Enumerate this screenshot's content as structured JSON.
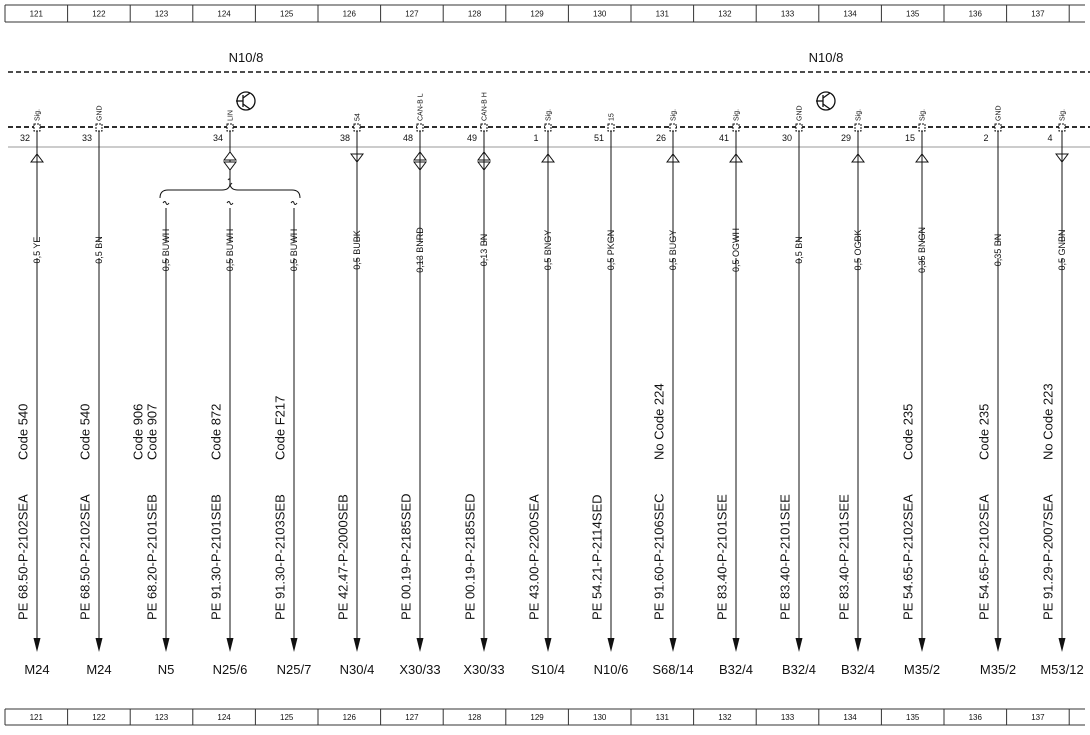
{
  "ruler": [
    121,
    122,
    123,
    124,
    125,
    126,
    127,
    128,
    129,
    130,
    131,
    132,
    133,
    134,
    135,
    136,
    137
  ],
  "modules": [
    "N10/8",
    "N10/8"
  ],
  "connections": [
    {
      "pin_label": "Sig.",
      "pin": "32",
      "branches": [
        {
          "gauge": "0,5 YE",
          "codes": [
            "Code 540"
          ],
          "doc": "PE 68.50-P-2102SEA",
          "target": "M24"
        }
      ]
    },
    {
      "pin_label": "GND",
      "pin": "33",
      "branches": [
        {
          "gauge": "0,5 BN",
          "codes": [
            "Code 540"
          ],
          "doc": "PE 68.50-P-2102SEA",
          "target": "M24"
        }
      ]
    },
    {
      "pin_label": "LIN",
      "pin": "34",
      "branches": [
        {
          "gauge": "0,5 BUWH",
          "codes": [
            "Code 906",
            "Code 907"
          ],
          "doc": "PE 68.20-P-2101SEB",
          "target": "N5"
        },
        {
          "gauge": "0,5 BUWH",
          "codes": [
            "Code 872"
          ],
          "doc": "PE 91.30-P-2101SEB",
          "target": "N25/6"
        },
        {
          "gauge": "0,5 BUWH",
          "codes": [
            "Code F217"
          ],
          "doc": "PE 91.30-P-2103SEB",
          "target": "N25/7"
        }
      ]
    },
    {
      "pin_label": "54",
      "pin": "38",
      "branches": [
        {
          "gauge": "0,5 BUBK",
          "codes": [],
          "doc": "PE 42.47-P-2000SEB",
          "target": "N30/4"
        }
      ]
    },
    {
      "pin_label": "CAN-B L",
      "pin": "48",
      "branches": [
        {
          "gauge": "0,13 BNRD",
          "codes": [],
          "doc": "PE 00.19-P-2185SED",
          "target": "X30/33",
          "target_color": "#1c1cc8"
        }
      ]
    },
    {
      "pin_label": "CAN-B H",
      "pin": "49",
      "branches": [
        {
          "gauge": "0,13 BN",
          "codes": [],
          "doc": "PE 00.19-P-2185SED",
          "target": "X30/33",
          "target_color": "#1c1cc8"
        }
      ]
    },
    {
      "pin_label": "Sig.",
      "pin": "1",
      "branches": [
        {
          "gauge": "0,5 BNGY",
          "codes": [],
          "doc": "PE 43.00-P-2200SEA",
          "target": "S10/4"
        }
      ]
    },
    {
      "pin_label": "15",
      "pin": "51",
      "branches": [
        {
          "gauge": "0,5 PKGN",
          "codes": [],
          "doc": "PE 54.21-P-2114SED",
          "target": "N10/6"
        }
      ]
    },
    {
      "pin_label": "Sig.",
      "pin": "26",
      "branches": [
        {
          "gauge": "0,5 BUGY",
          "codes": [
            "No Code 224"
          ],
          "doc": "PE 91.60-P-2106SEC",
          "target": "S68/14"
        }
      ]
    },
    {
      "pin_label": "Sig.",
      "pin": "41",
      "branches": [
        {
          "gauge": "0,5 OGWH",
          "codes": [],
          "doc": "PE 83.40-P-2101SEE",
          "target": "B32/4"
        }
      ]
    },
    {
      "pin_label": "GND",
      "pin": "30",
      "branches": [
        {
          "gauge": "0,5 BN",
          "codes": [],
          "doc": "PE 83.40-P-2101SEE",
          "target": "B32/4"
        }
      ]
    },
    {
      "pin_label": "Sig.",
      "pin": "29",
      "branches": [
        {
          "gauge": "0,5 OGBK",
          "codes": [],
          "doc": "PE 83.40-P-2101SEE",
          "target": "B32/4"
        }
      ]
    },
    {
      "pin_label": "Sig.",
      "pin": "15",
      "pin_color": "#1c1cc8",
      "branches": [
        {
          "gauge": "0,35 BNGN",
          "codes": [
            "Code 235"
          ],
          "doc": "PE 54.65-P-2102SEA",
          "target": "M35/2"
        }
      ]
    },
    {
      "pin_label": "GND",
      "pin": "2",
      "branches": [
        {
          "gauge": "0,35 BN",
          "codes": [
            "Code 235"
          ],
          "doc": "PE 54.65-P-2102SEA",
          "target": "M35/2"
        }
      ]
    },
    {
      "pin_label": "Sig.",
      "pin": "4",
      "branches": [
        {
          "gauge": "0,5 GNBN",
          "codes": [
            "No Code 223"
          ],
          "doc": "PE 91.29-P-2007SEA",
          "target": "M53/12"
        }
      ]
    }
  ]
}
